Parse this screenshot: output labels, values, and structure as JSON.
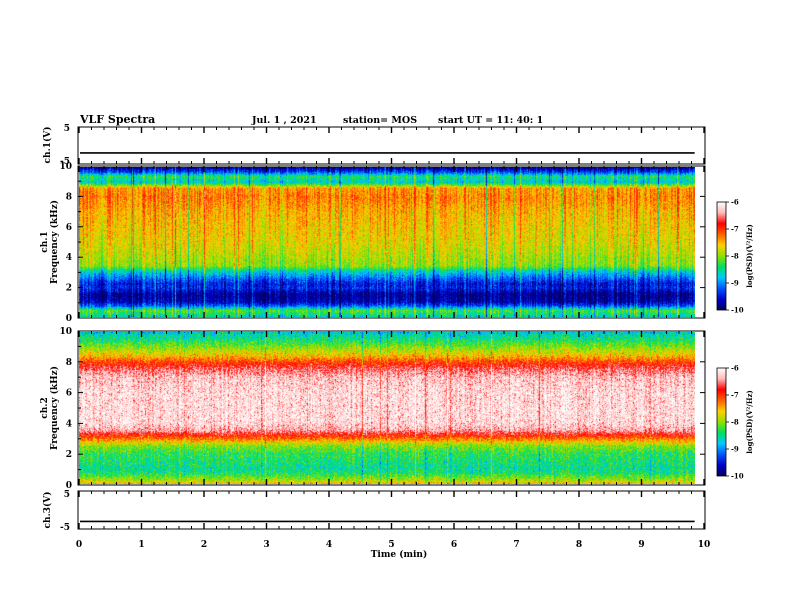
{
  "header": {
    "title": "VLF Spectra",
    "date": "Jul.  1  , 2021",
    "station": "station= MOS",
    "start": "start  UT =   11: 40: 1"
  },
  "colors": {
    "scale": [
      "#000060",
      "#0000c8",
      "#0055ff",
      "#00c8ff",
      "#00e060",
      "#90e000",
      "#ffd000",
      "#ff6000",
      "#ff0000",
      "#ffb8b8",
      "#ffffff"
    ],
    "axis": "#000000"
  },
  "chart_data": [
    {
      "type": "line",
      "name_label": "ch.1(V)",
      "ylim": [
        -5,
        5
      ],
      "y_ticks": [
        "5",
        "-5"
      ],
      "y_value": -2,
      "xlim": [
        0,
        10
      ],
      "x_unit": "min"
    },
    {
      "type": "heatmap",
      "panel_label": "ch.1",
      "ylabel": "Frequency  (kHz)",
      "ylim": [
        0,
        10
      ],
      "y_ticks": [
        "0",
        "2",
        "4",
        "6",
        "8",
        "10"
      ],
      "xlim": [
        0,
        10
      ],
      "data_end_min": 9.85,
      "colorbar": {
        "label": "log(PSD)(V²/Hz)",
        "ticks": [
          "-6",
          "-7",
          "-8",
          "-9",
          "-10"
        ],
        "range": [
          -10,
          -6
        ]
      },
      "frequency_profile_log_psd": [
        {
          "f": 0.0,
          "v": -8.6
        },
        {
          "f": 0.4,
          "v": -8.2
        },
        {
          "f": 0.7,
          "v": -9.2
        },
        {
          "f": 1.0,
          "v": -9.7
        },
        {
          "f": 1.5,
          "v": -9.8
        },
        {
          "f": 1.9,
          "v": -9.4
        },
        {
          "f": 2.2,
          "v": -9.5
        },
        {
          "f": 2.6,
          "v": -9.1
        },
        {
          "f": 3.0,
          "v": -8.7
        },
        {
          "f": 3.4,
          "v": -8.0
        },
        {
          "f": 4.0,
          "v": -7.9
        },
        {
          "f": 5.0,
          "v": -7.7
        },
        {
          "f": 6.0,
          "v": -7.6
        },
        {
          "f": 7.0,
          "v": -7.5
        },
        {
          "f": 8.0,
          "v": -7.3
        },
        {
          "f": 8.6,
          "v": -7.4
        },
        {
          "f": 9.0,
          "v": -8.7
        },
        {
          "f": 9.4,
          "v": -8.4
        },
        {
          "f": 9.7,
          "v": -9.3
        },
        {
          "f": 10.0,
          "v": -9.8
        }
      ]
    },
    {
      "type": "heatmap",
      "panel_label": "ch.2",
      "ylabel": "Frequency  (kHz)",
      "ylim": [
        0,
        10
      ],
      "y_ticks": [
        "0",
        "2",
        "4",
        "6",
        "8",
        "10"
      ],
      "xlim": [
        0,
        10
      ],
      "data_end_min": 9.85,
      "colorbar": {
        "label": "log(PSD)(V²/Hz)",
        "ticks": [
          "-6",
          "-7",
          "-8",
          "-9",
          "-10"
        ],
        "range": [
          -10,
          -6
        ]
      },
      "frequency_profile_log_psd": [
        {
          "f": 0.0,
          "v": -7.6
        },
        {
          "f": 0.3,
          "v": -8.0
        },
        {
          "f": 0.7,
          "v": -8.4
        },
        {
          "f": 1.0,
          "v": -8.5
        },
        {
          "f": 1.5,
          "v": -8.4
        },
        {
          "f": 2.0,
          "v": -8.3
        },
        {
          "f": 2.5,
          "v": -8.0
        },
        {
          "f": 3.0,
          "v": -7.2
        },
        {
          "f": 3.5,
          "v": -6.4
        },
        {
          "f": 4.0,
          "v": -6.2
        },
        {
          "f": 5.0,
          "v": -6.2
        },
        {
          "f": 6.0,
          "v": -6.2
        },
        {
          "f": 7.0,
          "v": -6.3
        },
        {
          "f": 7.6,
          "v": -6.6
        },
        {
          "f": 8.0,
          "v": -7.0
        },
        {
          "f": 8.5,
          "v": -7.6
        },
        {
          "f": 9.0,
          "v": -8.0
        },
        {
          "f": 9.5,
          "v": -8.4
        },
        {
          "f": 10.0,
          "v": -8.7
        }
      ]
    },
    {
      "type": "line",
      "name_label": "ch.3(V)",
      "ylim": [
        -5,
        5
      ],
      "y_ticks": [
        "5",
        "-5"
      ],
      "y_value": -3,
      "xlim": [
        0,
        10
      ],
      "x_unit": "min"
    }
  ],
  "x_axis": {
    "label": "Time  (min)",
    "ticks": [
      "0",
      "1",
      "2",
      "3",
      "4",
      "5",
      "6",
      "7",
      "8",
      "9",
      "10"
    ]
  }
}
